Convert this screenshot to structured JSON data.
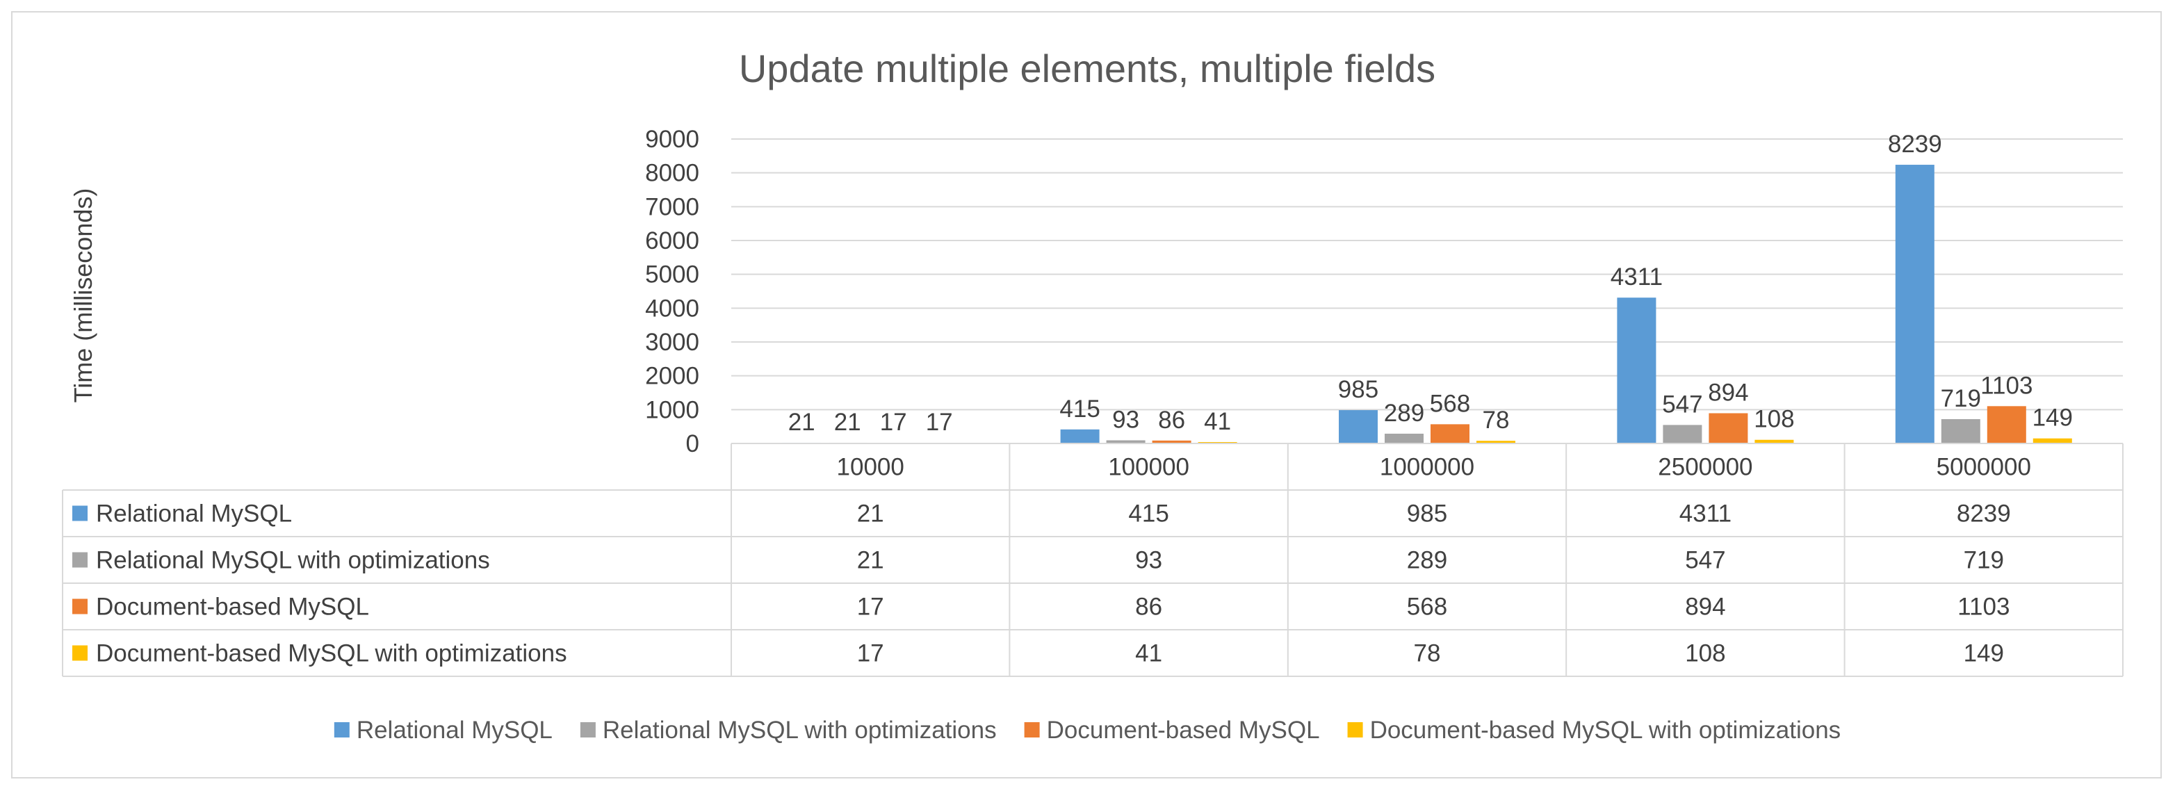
{
  "chart_data": {
    "type": "bar",
    "title": "Update multiple elements, multiple fields",
    "xlabel": "",
    "ylabel": "Time (milliseconds)",
    "ylim": [
      0,
      9000
    ],
    "yticks": [
      0,
      1000,
      2000,
      3000,
      4000,
      5000,
      6000,
      7000,
      8000,
      9000
    ],
    "grid": true,
    "legend_position": "bottom",
    "data_table": true,
    "categories": [
      "10000",
      "100000",
      "1000000",
      "2500000",
      "5000000"
    ],
    "series": [
      {
        "name": "Relational MySQL",
        "color": "#5b9bd5",
        "values": [
          21,
          415,
          985,
          4311,
          8239
        ]
      },
      {
        "name": "Relational MySQL with optimizations",
        "color": "#a5a5a5",
        "values": [
          21,
          93,
          289,
          547,
          719
        ]
      },
      {
        "name": "Document-based MySQL",
        "color": "#ed7d31",
        "values": [
          17,
          86,
          568,
          894,
          1103
        ]
      },
      {
        "name": "Document-based MySQL with optimizations",
        "color": "#ffc000",
        "values": [
          17,
          41,
          78,
          108,
          149
        ]
      }
    ]
  }
}
